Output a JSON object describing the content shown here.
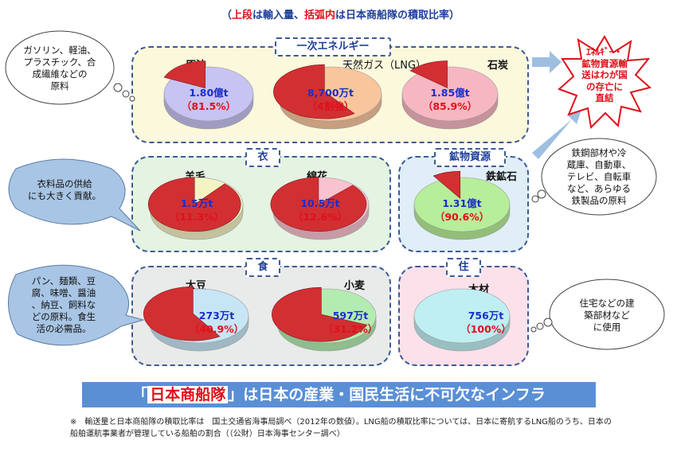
{
  "header_note": {
    "p1": "（",
    "h1": "上段",
    "p2": "は輸入量、",
    "h2": "括弧内",
    "p3": "は日本商船隊の積取比率）"
  },
  "groups": {
    "energy": {
      "title": "一次エネルギー"
    },
    "clothing": {
      "title": "衣"
    },
    "mineral": {
      "title": "鉱物資源"
    },
    "food": {
      "title": "食"
    },
    "housing": {
      "title": "住"
    }
  },
  "chart_data": [
    {
      "type": "pie",
      "name": "原油",
      "amount": "1.80億t",
      "ratio_text": "（81.5%）",
      "value": 81.5,
      "color": "#c7c3f3"
    },
    {
      "type": "pie",
      "name": "天然ガス（LNG）",
      "amount": "8,700万t",
      "ratio_text": "（4割強）",
      "value": 40,
      "color": "#f9c59d"
    },
    {
      "type": "pie",
      "name": "石炭",
      "amount": "1.85億t",
      "ratio_text": "（85.9%）",
      "value": 85.9,
      "color": "#f7b7c2"
    },
    {
      "type": "pie",
      "name": "羊毛",
      "amount": "1.5万t",
      "ratio_text": "（11.3%）",
      "value": 11.3,
      "color": "#f4f3c4"
    },
    {
      "type": "pie",
      "name": "綿花",
      "amount": "10.5万t",
      "ratio_text": "（12.6%）",
      "value": 12.6,
      "color": "#f8c2cf"
    },
    {
      "type": "pie",
      "name": "鉄鉱石",
      "amount": "1.31億t",
      "ratio_text": "（90.6%）",
      "value": 90.6,
      "color": "#b6ee99"
    },
    {
      "type": "pie",
      "name": "大豆",
      "amount": "273万t",
      "ratio_text": "（40.9%）",
      "value": 40.9,
      "color": "#c7e6f5"
    },
    {
      "type": "pie",
      "name": "小麦",
      "amount": "597万t",
      "ratio_text": "（31.2%）",
      "value": 31.2,
      "color": "#b3ecb0"
    },
    {
      "type": "pie",
      "name": "木材",
      "amount": "756万t",
      "ratio_text": "（100%）",
      "value": 100,
      "color": "#bfeff3"
    }
  ],
  "bubbles": {
    "energy": [
      "ガソリン、軽油、",
      "プラスチック、合",
      "成繊維などの",
      "原料"
    ],
    "clothing": [
      "衣料品の供給",
      "にも大きく貢献。"
    ],
    "food": [
      "パン、麺類、豆",
      "腐、味噌、醤油",
      "、納豆、飼料な",
      "どの原料。食生",
      "活の必需品。"
    ],
    "mineral": [
      "鉄鋼部材や冷",
      "蔵庫、自動車、",
      "テレビ、自転車",
      "など、あらゆる",
      "鉄製品の原料"
    ],
    "housing": [
      "住宅などの建",
      "築部材など",
      "に使用"
    ]
  },
  "star": [
    "ｴﾈﾙｷﾞｰ・",
    "鉱物資源輸",
    "送はわが国",
    "の存亡に",
    "直結"
  ],
  "banner": {
    "open": "「",
    "highlight": "日本商船隊",
    "close": "」",
    "rest": "は日本の産業・国民生活に不可欠なインフラ"
  },
  "footnote": [
    "※　輸送量と日本商船隊の積取比率は　国土交通省海事局調べ（2012年の数値）。LNG船の積取比率については、日本に寄航するLNG船のうち、日本の",
    "船舶運航事業者が管理している船舶の割合（（公財）日本海事センター調べ）"
  ],
  "colors": {
    "slice": "#d22f33",
    "border": "#3b5b95",
    "banner": "#5a8fd6",
    "accent": "#e0101a"
  }
}
